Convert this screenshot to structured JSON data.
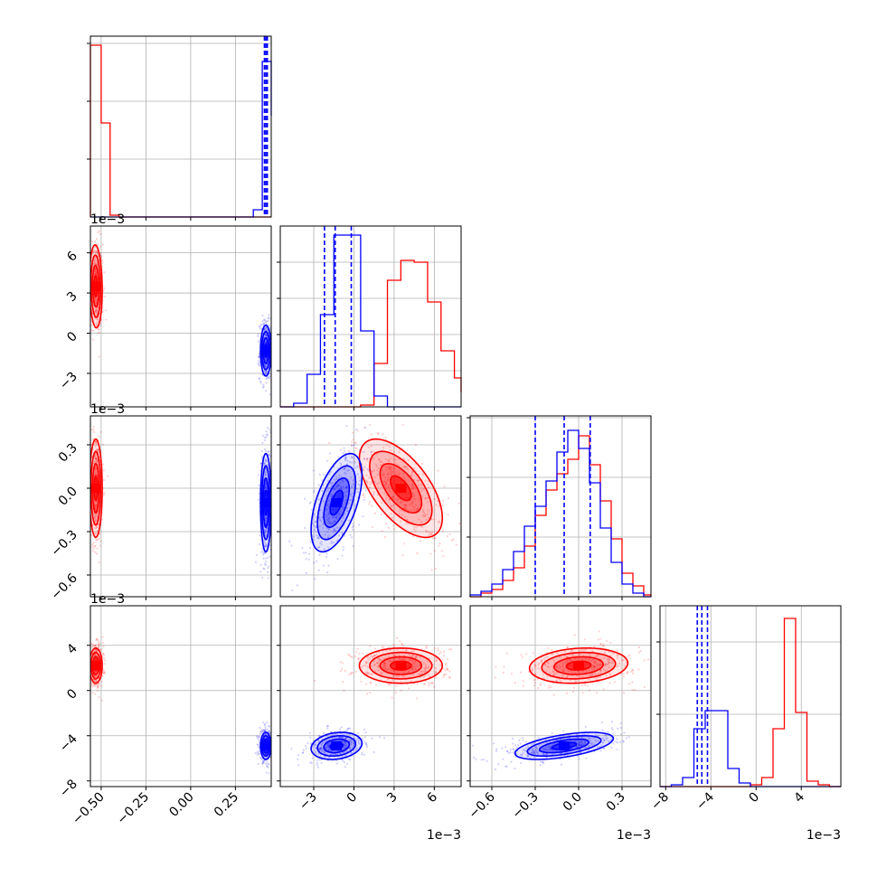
{
  "colors": {
    "red": "#ff0000",
    "blue": "#0000ff",
    "grid": "#b0b0b0",
    "axes": "#000000"
  },
  "chart_data": {
    "type": "corner",
    "title": "",
    "grid": true,
    "series": [
      {
        "color": "#ff0000"
      },
      {
        "color": "#0000ff"
      }
    ],
    "parameters": [
      {
        "range": [
          -0.56,
          0.45
        ],
        "ticks": [
          -0.5,
          -0.25,
          0.0,
          0.25
        ],
        "tick_labels": [
          "−0.50",
          "−0.25",
          "0.00",
          "0.25"
        ],
        "offset_text": ""
      },
      {
        "range": [
          -5.5,
          8.0
        ],
        "ticks": [
          -3,
          0,
          3,
          6
        ],
        "tick_labels": [
          "−3",
          "0",
          "3",
          "6"
        ],
        "offset_text": "1e−3"
      },
      {
        "range": [
          -0.75,
          0.5
        ],
        "ticks": [
          -0.6,
          -0.3,
          0.0,
          0.3
        ],
        "tick_labels": [
          "−0.6",
          "−0.3",
          "0.0",
          "0.3"
        ],
        "offset_text": "1e−3"
      },
      {
        "range": [
          -8.5,
          7.5
        ],
        "ticks": [
          -8,
          -4,
          0,
          4
        ],
        "tick_labels": [
          "−8",
          "−4",
          "0",
          "4"
        ],
        "offset_text": "1e−3"
      }
    ],
    "histograms": [
      {
        "param": 0,
        "bins": [
          -0.56,
          -0.5,
          -0.45,
          -0.4,
          -0.35,
          -0.3,
          -0.25,
          -0.2,
          -0.15,
          -0.1,
          -0.05,
          0.0,
          0.05,
          0.1,
          0.15,
          0.2,
          0.25,
          0.3,
          0.35,
          0.4,
          0.45
        ],
        "red": [
          0.95,
          0.52,
          0.01,
          0,
          0,
          0,
          0,
          0,
          0,
          0,
          0,
          0,
          0,
          0,
          0,
          0,
          0,
          0,
          0,
          0
        ],
        "blue": [
          0,
          0,
          0,
          0,
          0,
          0,
          0,
          0,
          0,
          0,
          0,
          0,
          0,
          0,
          0,
          0,
          0,
          0,
          0.04,
          0.86,
          0.56
        ],
        "blue_quantiles": [
          0.412,
          0.42,
          0.428
        ],
        "y_ticks": [
          0.32,
          0.64,
          0.96
        ]
      },
      {
        "param": 1,
        "bins": [
          -5.5,
          -4.5,
          -3.5,
          -2.5,
          -1.5,
          -0.5,
          0.5,
          1.5,
          2.5,
          3.5,
          4.5,
          5.5,
          6.5,
          7.5,
          8.0
        ],
        "red": [
          0,
          0,
          0,
          0,
          0,
          0,
          0.01,
          0.24,
          0.7,
          0.81,
          0.8,
          0.58,
          0.31,
          0.16,
          0.08
        ],
        "blue": [
          0,
          0.02,
          0.18,
          0.51,
          0.95,
          0.95,
          0.42,
          0.06,
          0,
          0,
          0,
          0,
          0,
          0,
          0
        ],
        "blue_quantiles": [
          -2.2,
          -1.4,
          -0.2
        ],
        "y_ticks": [
          0.2,
          0.4,
          0.6,
          0.8
        ]
      },
      {
        "param": 2,
        "bins": [
          -0.75,
          -0.675,
          -0.6,
          -0.525,
          -0.45,
          -0.375,
          -0.3,
          -0.225,
          -0.15,
          -0.075,
          0.0,
          0.075,
          0.15,
          0.225,
          0.3,
          0.375,
          0.45,
          0.5
        ],
        "red": [
          0,
          0.02,
          0.04,
          0.09,
          0.16,
          0.28,
          0.45,
          0.59,
          0.68,
          0.76,
          0.89,
          0.73,
          0.53,
          0.32,
          0.13,
          0.06,
          0.01
        ],
        "blue": [
          0.01,
          0.03,
          0.07,
          0.15,
          0.25,
          0.39,
          0.5,
          0.64,
          0.8,
          0.92,
          0.82,
          0.63,
          0.38,
          0.19,
          0.07,
          0.02,
          0
        ],
        "blue_quantiles": [
          -0.3,
          -0.1,
          0.08
        ],
        "y_ticks": [
          0.33,
          0.66,
          0.99
        ]
      },
      {
        "param": 3,
        "bins": [
          -8.5,
          -7.5,
          -6.5,
          -5.5,
          -4.5,
          -3.5,
          -2.5,
          -1.5,
          -0.5,
          0.5,
          1.5,
          2.5,
          3.5,
          4.5,
          5.5,
          6.5,
          7.5
        ],
        "red": [
          0,
          0,
          0,
          0,
          0,
          0,
          0,
          0,
          0.01,
          0.05,
          0.32,
          0.93,
          0.41,
          0.03,
          0.01,
          0
        ],
        "blue": [
          0,
          0.01,
          0.05,
          0.32,
          0.42,
          0.42,
          0.1,
          0.02,
          0,
          0,
          0,
          0,
          0,
          0,
          0,
          0
        ],
        "blue_quantiles": [
          -5.2,
          -4.8,
          -4.3
        ],
        "y_ticks": [
          0.4,
          0.8
        ]
      }
    ],
    "clusters": [
      {
        "color": "#ff0000",
        "mean": [
          -0.53,
          3.5,
          0.0,
          2.2
        ],
        "sd": [
          0.018,
          1.55,
          0.17,
          0.78
        ],
        "corr": [
          [
            0,
            1,
            -0.1
          ],
          [
            0,
            2,
            0.0
          ],
          [
            1,
            2,
            -0.6
          ],
          [
            1,
            3,
            0.0
          ],
          [
            2,
            3,
            0.15
          ]
        ]
      },
      {
        "color": "#0000ff",
        "mean": [
          0.42,
          -1.3,
          -0.1,
          -4.9
        ],
        "sd": [
          0.015,
          0.95,
          0.17,
          0.6
        ],
        "corr": [
          [
            0,
            1,
            0.0
          ],
          [
            0,
            2,
            0.0
          ],
          [
            1,
            2,
            0.55
          ],
          [
            1,
            3,
            0.2
          ],
          [
            2,
            3,
            0.55
          ]
        ]
      }
    ],
    "contour_levels": [
      0.5,
      1.0,
      1.5,
      2.0
    ]
  }
}
